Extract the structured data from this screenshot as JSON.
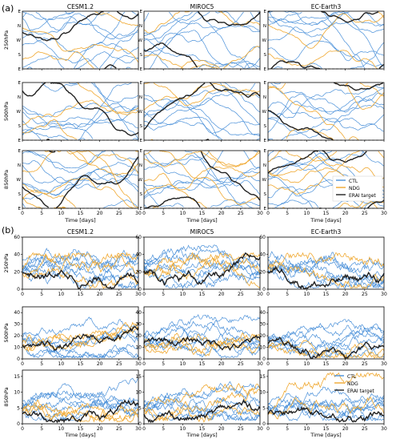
{
  "figure": {
    "panel_labels": [
      "(a)",
      "(b)"
    ],
    "models": [
      "CESM1.2",
      "MIROC5",
      "EC-Earth3"
    ],
    "levels": [
      "250hPa",
      "500hPa",
      "850hPa"
    ],
    "xlabel": "Time [days]"
  },
  "legend": {
    "entries": [
      {
        "label": "CTL",
        "color": "#4a90d9"
      },
      {
        "label": "NDG",
        "color": "#f0a830"
      },
      {
        "label": "ERAI target",
        "color": "#222222"
      }
    ]
  },
  "chart_data": [
    {
      "type": "line",
      "panel": "(a)",
      "grid_layout": "3 rows (levels) x 3 columns (models)",
      "xlabel": "Time [days]",
      "xlim": [
        0,
        30
      ],
      "xticks": [
        0,
        5,
        10,
        15,
        20,
        25,
        30
      ],
      "ytick_labels": [
        "E",
        "S",
        "W",
        "N",
        "E"
      ],
      "description": "Wind direction time series; many CTL ensemble members, NDG members and ERAI target",
      "series": [
        {
          "name": "CTL",
          "color": "#4a90d9"
        },
        {
          "name": "NDG",
          "color": "#f0a830"
        },
        {
          "name": "ERAI target",
          "color": "#222222"
        }
      ],
      "legend_placement": "bottom-right panel, top-right"
    },
    {
      "type": "line",
      "panel": "(b)",
      "grid_layout": "3 rows (levels) x 3 columns (models)",
      "xlabel": "Time [days]",
      "xlim": [
        0,
        30
      ],
      "xticks": [
        0,
        5,
        10,
        15,
        20,
        25,
        30
      ],
      "rows": [
        {
          "level": "250hPa",
          "ylim": [
            0,
            60
          ],
          "yticks": [
            0,
            20,
            40,
            60
          ]
        },
        {
          "level": "500hPa",
          "ylim": [
            0,
            45
          ],
          "yticks": [
            0,
            10,
            20,
            30,
            40
          ]
        },
        {
          "level": "850hPa",
          "ylim": [
            0,
            17
          ],
          "yticks": [
            0,
            5,
            10,
            15
          ]
        }
      ],
      "series": [
        {
          "name": "CTL",
          "color": "#4a90d9"
        },
        {
          "name": "NDG",
          "color": "#f0a830"
        },
        {
          "name": "ERAI target",
          "color": "#222222"
        }
      ],
      "legend_placement": "bottom-right panel, top-right"
    }
  ]
}
